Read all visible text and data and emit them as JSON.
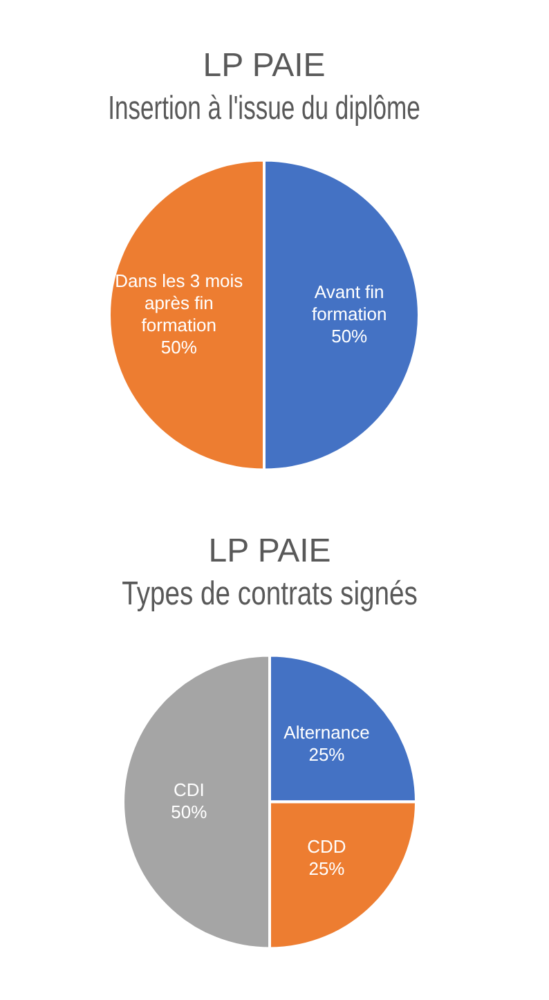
{
  "chart_data": [
    {
      "type": "pie",
      "title": "LP PAIE",
      "subtitle": "Insertion à l'issue du diplôme",
      "categories": [
        "Avant fin formation",
        "Dans les 3 mois après fin formation"
      ],
      "values": [
        50,
        50
      ],
      "colors": [
        "#4472c4",
        "#ed7d31"
      ],
      "value_labels": [
        "50%",
        "50%"
      ]
    },
    {
      "type": "pie",
      "title": "LP PAIE",
      "subtitle": "Types de contrats signés",
      "categories": [
        "Alternance",
        "CDD",
        "CDI"
      ],
      "values": [
        25,
        25,
        50
      ],
      "colors": [
        "#4472c4",
        "#ed7d31",
        "#a5a5a5"
      ],
      "value_labels": [
        "25%",
        "25%",
        "50%"
      ]
    }
  ]
}
